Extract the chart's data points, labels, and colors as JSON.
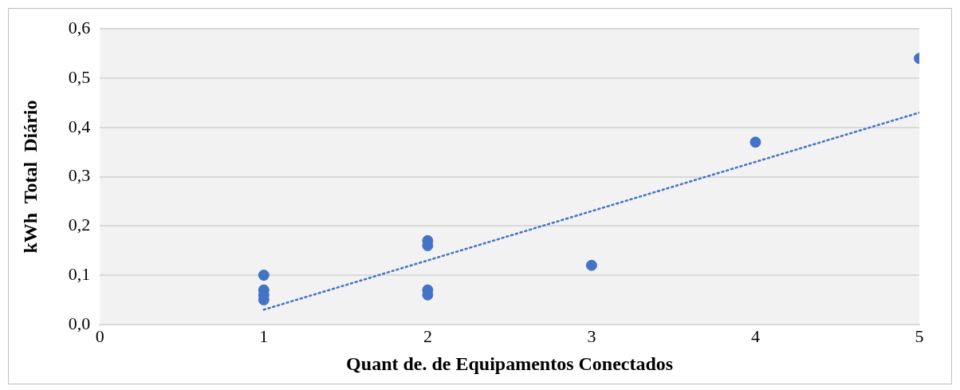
{
  "chart_data": {
    "type": "scatter",
    "xlabel": "Quant de. de Equipamentos Conectados",
    "ylabel": "kWh  Total  Diário",
    "xlim": [
      0,
      5
    ],
    "xticks": [
      0,
      1,
      2,
      3,
      4,
      5
    ],
    "ylim": [
      0,
      0.6
    ],
    "yticks": [
      {
        "value": 0,
        "label": "0,0"
      },
      {
        "value": 0.1,
        "label": "0,1"
      },
      {
        "value": 0.2,
        "label": "0,2"
      },
      {
        "value": 0.3,
        "label": "0,3"
      },
      {
        "value": 0.4,
        "label": "0,4"
      },
      {
        "value": 0.5,
        "label": "0,5"
      },
      {
        "value": 0.6,
        "label": "0,6"
      }
    ],
    "grid": "y",
    "marker": "circle",
    "legend": false,
    "series": [
      {
        "color": "#4472c4",
        "x": [
          1,
          1,
          1,
          1,
          2,
          2,
          2,
          2,
          3,
          4,
          5
        ],
        "values": [
          0.1,
          0.07,
          0.06,
          0.05,
          0.17,
          0.16,
          0.07,
          0.06,
          0.12,
          0.37,
          0.54
        ]
      },
      {
        "type": "line",
        "color": "#4472c4",
        "line_style": "dotted",
        "marker": "none",
        "x": [
          1,
          5
        ],
        "values": [
          0.03,
          0.43
        ]
      }
    ]
  }
}
